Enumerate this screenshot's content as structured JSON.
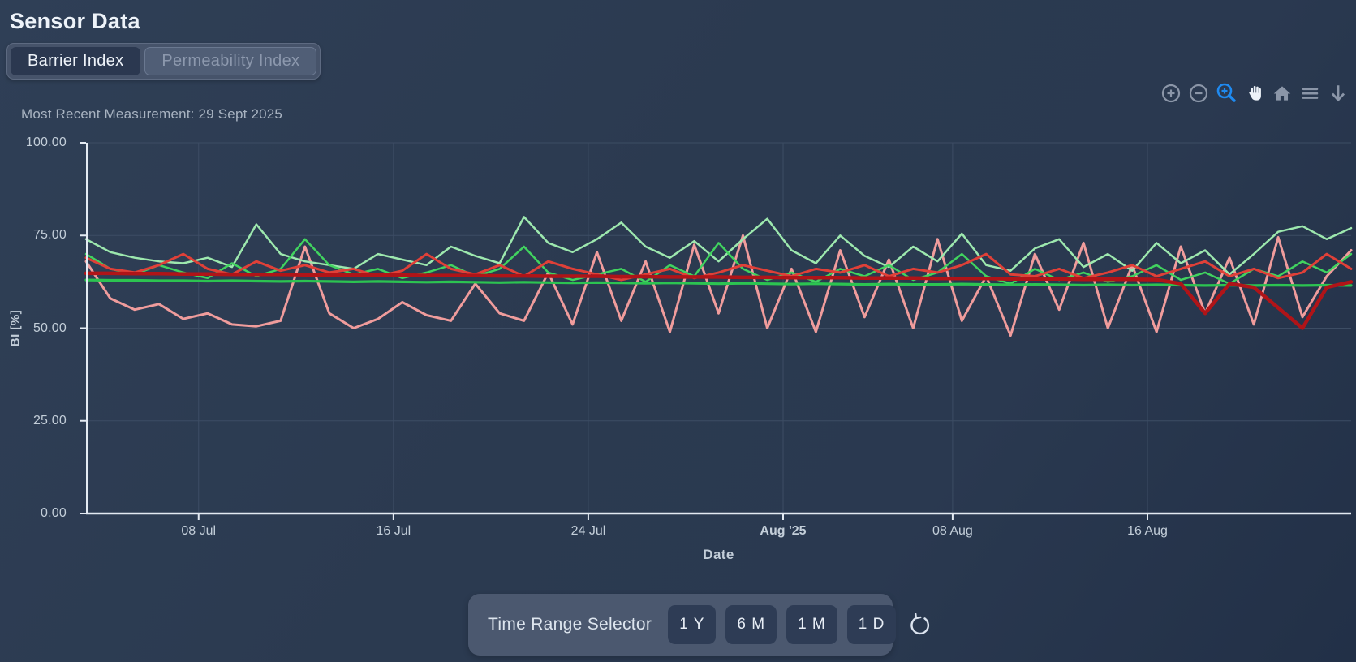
{
  "page": {
    "title": "Sensor Data",
    "subtitle": "Most Recent Measurement: 29 Sept 2025"
  },
  "tabs": [
    {
      "label": "Barrier Index",
      "active": true
    },
    {
      "label": "Permeability Index",
      "active": false
    }
  ],
  "toolbar": {
    "icons": [
      "zoom-in-icon",
      "zoom-out-icon",
      "box-zoom-icon",
      "pan-icon",
      "home-icon",
      "menu-icon",
      "download-icon"
    ],
    "active_icon": "box-zoom-icon",
    "active_color": "#1f8af0",
    "idle_color": "#8b96a8",
    "pan_color": "#ecf1f8"
  },
  "time_range_selector": {
    "label": "Time Range Selector",
    "buttons": [
      "1 Y",
      "6 M",
      "1 M",
      "1 D"
    ],
    "reset_icon": "reset-icon"
  },
  "colors": {
    "background": "#2b3a50",
    "grid": "#3d4d64",
    "axis": "#e3eaf2",
    "tick_label": "#c3ced9",
    "panel": "#4b586f",
    "button": "#2e3c55"
  },
  "chart_data": {
    "type": "line",
    "title": "",
    "xlabel": "Date",
    "ylabel": "BI [%]",
    "ylim": [
      0,
      100
    ],
    "x_range": [
      "03 Jul 2025",
      "25 Aug 2025"
    ],
    "grid": true,
    "legend": "none",
    "y_ticks": [
      {
        "v": 100,
        "label": "100.00"
      },
      {
        "v": 75,
        "label": "75.00"
      },
      {
        "v": 50,
        "label": "50.00"
      },
      {
        "v": 25,
        "label": "25.00"
      },
      {
        "v": 0,
        "label": "0.00"
      }
    ],
    "x_ticks": [
      {
        "pos": 0.089,
        "label": "08 Jul"
      },
      {
        "pos": 0.243,
        "label": "16 Jul"
      },
      {
        "pos": 0.397,
        "label": "24 Jul"
      },
      {
        "pos": 0.551,
        "label": "Aug '25",
        "bold": true
      },
      {
        "pos": 0.685,
        "label": "08 Aug"
      },
      {
        "pos": 0.839,
        "label": "16 Aug"
      }
    ],
    "series": [
      {
        "name": "salmon-jagged",
        "color": "#f09c9c",
        "width": 3,
        "values": [
          68,
          58,
          55,
          56.5,
          52.5,
          54,
          51,
          50.5,
          52,
          72,
          54,
          50,
          52.5,
          57,
          53.5,
          52,
          62,
          54,
          52,
          65,
          51,
          70.5,
          52,
          68,
          49,
          72.5,
          54,
          75,
          50,
          66,
          49,
          71,
          53,
          68.5,
          50,
          74,
          52,
          64,
          48,
          70,
          55,
          73,
          50,
          67,
          49,
          72,
          54,
          69,
          51,
          74.5,
          53,
          64,
          71
        ]
      },
      {
        "name": "light-green-jagged",
        "color": "#9de8ae",
        "width": 2.5,
        "values": [
          74,
          70.5,
          69,
          68,
          67.5,
          69,
          66.5,
          78,
          70,
          68,
          67,
          66,
          70,
          68.5,
          67,
          72,
          69.5,
          67.5,
          80,
          73,
          70.5,
          74,
          78.5,
          72,
          69,
          73.5,
          68,
          74,
          79.5,
          71,
          67.5,
          75,
          69.5,
          66.5,
          72,
          68,
          75.5,
          67,
          65.5,
          71.5,
          74,
          66.5,
          70,
          65.5,
          73,
          67.5,
          71,
          64.5,
          70,
          76,
          77.5,
          74,
          77
        ]
      },
      {
        "name": "bright-green-jagged",
        "color": "#41d35f",
        "width": 2.5,
        "values": [
          70,
          66,
          64.5,
          67,
          65,
          63.5,
          67.5,
          64,
          66,
          74,
          67,
          64.5,
          66,
          63.5,
          65,
          67,
          64,
          66,
          72,
          65,
          63,
          64.5,
          66,
          62.5,
          67,
          64,
          73,
          66,
          63,
          65,
          62.5,
          66,
          64,
          67,
          63,
          65,
          70,
          64,
          62,
          66,
          63,
          65,
          62.5,
          64,
          67,
          63,
          65,
          62,
          66,
          64,
          68,
          65,
          70
        ]
      },
      {
        "name": "green-flat",
        "color": "#2cc351",
        "width": 3.2,
        "values": [
          63,
          62.9,
          62.9,
          62.8,
          62.8,
          62.7,
          62.8,
          62.7,
          62.6,
          62.7,
          62.6,
          62.5,
          62.6,
          62.5,
          62.4,
          62.5,
          62.4,
          62.3,
          62.4,
          62.3,
          62.2,
          62.3,
          62.2,
          62.1,
          62.2,
          62.1,
          62,
          62.1,
          62,
          61.9,
          62,
          61.9,
          61.8,
          61.9,
          61.8,
          61.8,
          61.9,
          61.8,
          61.7,
          61.8,
          61.7,
          61.6,
          61.7,
          61.6,
          61.7,
          61.6,
          61.5,
          61.6,
          61.5,
          61.6,
          61.5,
          61.6,
          61.5
        ]
      },
      {
        "name": "bright-red-jagged",
        "color": "#e04038",
        "width": 3,
        "values": [
          69,
          66,
          65,
          67,
          70,
          66,
          64.5,
          68,
          65.5,
          67,
          65,
          66,
          64,
          65.5,
          70,
          66,
          64.5,
          67,
          64,
          68,
          66,
          64.5,
          63,
          64.5,
          66,
          63.5,
          65,
          67,
          65.5,
          64,
          66,
          65,
          67,
          64,
          66,
          65,
          67,
          70,
          64.5,
          64,
          66,
          63.5,
          65,
          67,
          64,
          66,
          68,
          64,
          66,
          63.5,
          65,
          70,
          66
        ]
      },
      {
        "name": "dark-red-flat",
        "color": "#b01418",
        "width": 4.5,
        "values": [
          64.8,
          64.8,
          64.7,
          64.7,
          64.6,
          64.6,
          64.5,
          64.5,
          64.5,
          64.4,
          64.4,
          64.4,
          64.3,
          64.3,
          64.2,
          64.2,
          64.2,
          64.1,
          64.1,
          64,
          64,
          64,
          63.9,
          63.9,
          63.8,
          63.8,
          63.8,
          63.7,
          63.7,
          63.6,
          63.6,
          63.6,
          63.5,
          63.5,
          63.5,
          63.4,
          63.4,
          63.4,
          63.3,
          63.3,
          63.3,
          63.2,
          63.2,
          63.2,
          63.1,
          62,
          54,
          62,
          61,
          55.5,
          50,
          61,
          62.5
        ]
      }
    ]
  }
}
